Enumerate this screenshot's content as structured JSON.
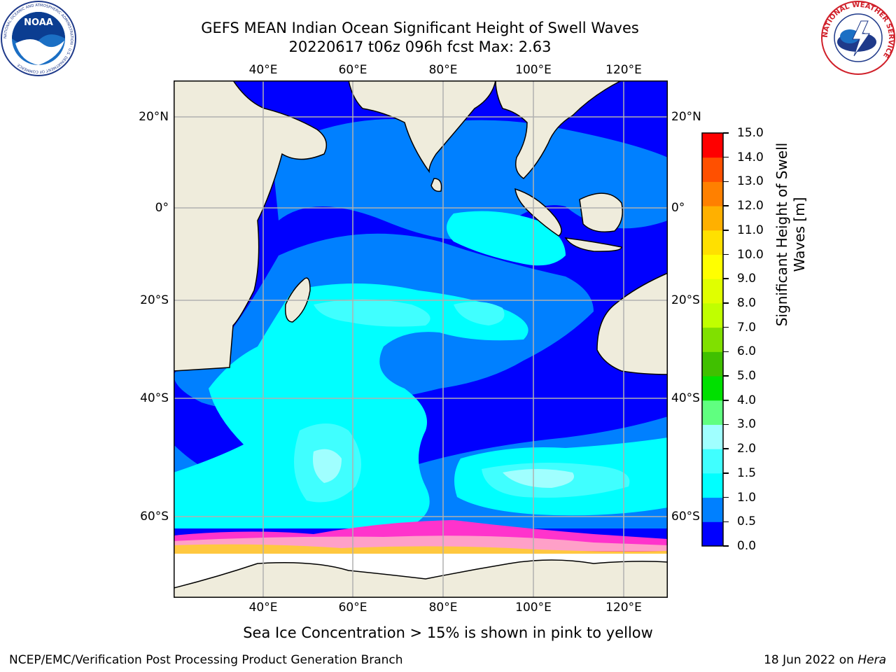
{
  "title": {
    "line1": "GEFS MEAN Indian Ocean Significant Height of Swell Waves",
    "line2": "20220617 t06z 096h fcst   Max: 2.63"
  },
  "map": {
    "lon_labels": [
      "40°E",
      "60°E",
      "80°E",
      "100°E",
      "120°E"
    ],
    "lat_labels": [
      "20°N",
      "0°",
      "20°S",
      "40°S",
      "60°S"
    ],
    "land_color": "#efecdc",
    "ice_colors": [
      "#ff33cc",
      "#ff66cc",
      "#ffa0c8",
      "#ffc840",
      "#ffffff"
    ]
  },
  "colorbar": {
    "title": "Significant Height of Swell Waves [m]",
    "title_line1": "Significant Height of Swell",
    "title_line2": "Waves [m]",
    "levels": [
      "0.0",
      "0.5",
      "1.0",
      "1.5",
      "2.0",
      "3.0",
      "4.0",
      "5.0",
      "6.0",
      "7.0",
      "8.0",
      "9.0",
      "10.0",
      "11.0",
      "12.0",
      "13.0",
      "14.0",
      "15.0"
    ],
    "colors": [
      "#0000ff",
      "#0080ff",
      "#00ffff",
      "#40ffff",
      "#a0ffff",
      "#60ff80",
      "#00e000",
      "#40c000",
      "#80e000",
      "#c0ff00",
      "#e0ff00",
      "#ffff00",
      "#ffe000",
      "#ffb000",
      "#ff8000",
      "#ff5000",
      "#ff0000"
    ]
  },
  "caption": "Sea Ice Concentration > 15% is shown in pink to yellow",
  "footer": {
    "left": "NCEP/EMC/Verification Post Processing Product Generation Branch",
    "date": "18 Jun 2022 on ",
    "machine": "Hera"
  },
  "logos": {
    "noaa_text": "NOAA",
    "noaa_ring": "NATIONAL OCEANIC AND ATMOSPHERIC ADMINISTRATION · U.S. DEPARTMENT OF COMMERCE",
    "nws_ring": "NATIONAL WEATHER SERVICE"
  }
}
